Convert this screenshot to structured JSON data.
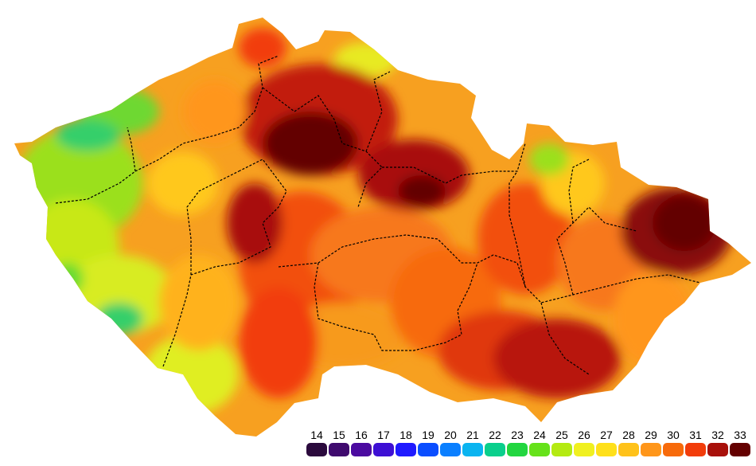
{
  "legend": {
    "items": [
      {
        "label": "14",
        "color": "#2b0a3d"
      },
      {
        "label": "15",
        "color": "#3f0a6e"
      },
      {
        "label": "16",
        "color": "#4b0aa0"
      },
      {
        "label": "17",
        "color": "#3d0fd4"
      },
      {
        "label": "18",
        "color": "#1f1aff"
      },
      {
        "label": "19",
        "color": "#0a4dff"
      },
      {
        "label": "20",
        "color": "#0a7fff"
      },
      {
        "label": "21",
        "color": "#0ab4f0"
      },
      {
        "label": "22",
        "color": "#0acf8c"
      },
      {
        "label": "23",
        "color": "#22d640"
      },
      {
        "label": "24",
        "color": "#66e21a"
      },
      {
        "label": "25",
        "color": "#b4ea12"
      },
      {
        "label": "26",
        "color": "#f0f020"
      },
      {
        "label": "27",
        "color": "#ffe01a"
      },
      {
        "label": "28",
        "color": "#ffc21a"
      },
      {
        "label": "29",
        "color": "#ff961a"
      },
      {
        "label": "30",
        "color": "#f76a0a"
      },
      {
        "label": "31",
        "color": "#f23c0a"
      },
      {
        "label": "32",
        "color": "#a8100a"
      },
      {
        "label": "33",
        "color": "#640000"
      }
    ]
  }
}
